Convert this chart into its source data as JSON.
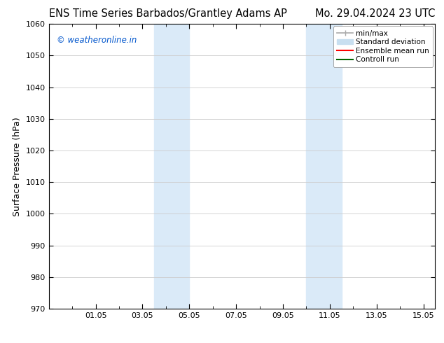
{
  "title_left": "ENS Time Series Barbados/Grantley Adams AP",
  "title_right": "Mo. 29.04.2024 23 UTC",
  "ylabel": "Surface Pressure (hPa)",
  "ylim": [
    970,
    1060
  ],
  "yticks": [
    970,
    980,
    990,
    1000,
    1010,
    1020,
    1030,
    1040,
    1050,
    1060
  ],
  "xtick_labels": [
    "01.05",
    "03.05",
    "05.05",
    "07.05",
    "09.05",
    "11.05",
    "13.05",
    "15.05"
  ],
  "xtick_positions": [
    2,
    4,
    6,
    8,
    10,
    12,
    14,
    16
  ],
  "xlim": [
    0,
    16.5
  ],
  "shaded_regions": [
    {
      "x_start": 4.5,
      "x_end": 6.0,
      "color": "#daeaf8"
    },
    {
      "x_start": 11.0,
      "x_end": 12.5,
      "color": "#daeaf8"
    }
  ],
  "background_color": "#ffffff",
  "plot_bg_color": "#ffffff",
  "grid_color": "#cccccc",
  "watermark_text": "© weatheronline.in",
  "watermark_color": "#0055cc",
  "legend_labels": [
    "min/max",
    "Standard deviation",
    "Ensemble mean run",
    "Controll run"
  ],
  "legend_colors": [
    "#aaaaaa",
    "#c8dff0",
    "#ff0000",
    "#006600"
  ],
  "title_fontsize": 10.5,
  "ylabel_fontsize": 9,
  "tick_fontsize": 8,
  "watermark_fontsize": 8.5,
  "legend_fontsize": 7.5
}
